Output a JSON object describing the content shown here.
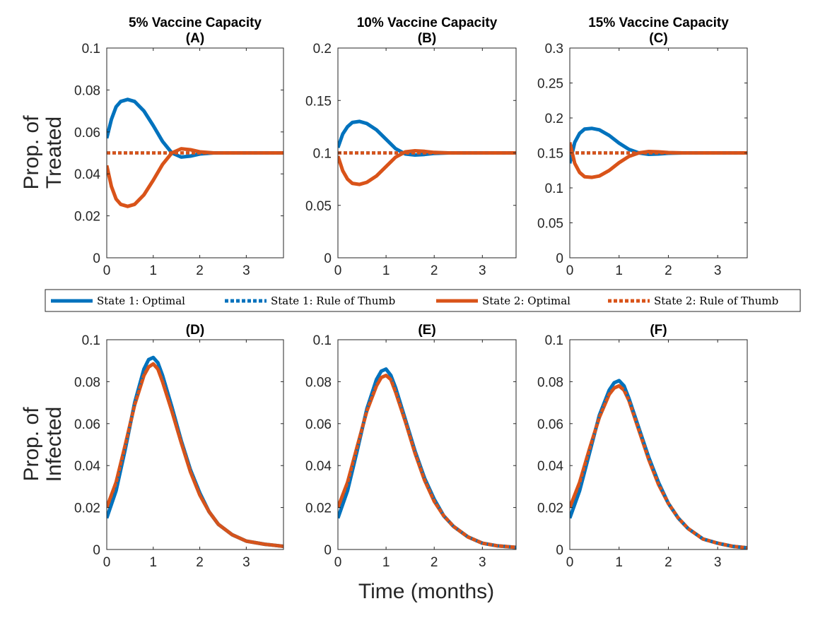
{
  "figure": {
    "ylabel_top": [
      "Prop. of",
      "Treated"
    ],
    "ylabel_bottom": [
      "Prop. of",
      "Infected"
    ],
    "xlabel": "Time (months)"
  },
  "legend": {
    "placement": "center, between rows",
    "entries": [
      {
        "label": "State 1:  Optimal",
        "color": "#0072BD",
        "style": "solid"
      },
      {
        "label": "State 1:  Rule of Thumb",
        "color": "#0072BD",
        "style": "dotted"
      },
      {
        "label": "State 2:  Optimal",
        "color": "#D95319",
        "style": "solid"
      },
      {
        "label": "State 2:  Rule of Thumb",
        "color": "#D95319",
        "style": "dotted"
      }
    ]
  },
  "chart_data": [
    {
      "id": "A",
      "type": "line",
      "title": [
        "5% Vaccine Capacity",
        "(A)"
      ],
      "xlim": [
        0,
        3.8
      ],
      "xticks": [
        0,
        1,
        2,
        3
      ],
      "ylim": [
        0,
        0.1
      ],
      "yticks": [
        "0",
        "0.02",
        "0.04",
        "0.06",
        "0.08",
        "0.1"
      ],
      "series": [
        {
          "name": "State 1:  Optimal",
          "x": [
            0,
            0.1,
            0.2,
            0.3,
            0.45,
            0.6,
            0.8,
            1.0,
            1.2,
            1.4,
            1.6,
            1.8,
            2.0,
            2.3,
            2.6,
            3.0,
            3.4,
            3.8
          ],
          "y": [
            0.057,
            0.066,
            0.072,
            0.0745,
            0.0755,
            0.0745,
            0.07,
            0.063,
            0.0555,
            0.05,
            0.048,
            0.0485,
            0.0495,
            0.05,
            0.05,
            0.05,
            0.05,
            0.05
          ]
        },
        {
          "name": "State 1:  Rule of Thumb",
          "x": [
            0,
            3.8
          ],
          "y": [
            0.05,
            0.05
          ]
        },
        {
          "name": "State 2:  Optimal",
          "x": [
            0,
            0.1,
            0.2,
            0.3,
            0.45,
            0.6,
            0.8,
            1.0,
            1.2,
            1.4,
            1.6,
            1.8,
            2.0,
            2.3,
            2.6,
            3.0,
            3.4,
            3.8
          ],
          "y": [
            0.044,
            0.034,
            0.028,
            0.0255,
            0.0245,
            0.0255,
            0.03,
            0.037,
            0.0445,
            0.05,
            0.052,
            0.0515,
            0.0505,
            0.05,
            0.05,
            0.05,
            0.05,
            0.05
          ]
        },
        {
          "name": "State 2:  Rule of Thumb",
          "x": [
            0,
            3.8
          ],
          "y": [
            0.05,
            0.05
          ]
        }
      ]
    },
    {
      "id": "B",
      "type": "line",
      "title": [
        "10% Vaccine Capacity",
        "(B)"
      ],
      "xlim": [
        0,
        3.7
      ],
      "xticks": [
        0,
        1,
        2,
        3
      ],
      "ylim": [
        0,
        0.2
      ],
      "yticks": [
        "0",
        "0.05",
        "0.1",
        "0.15",
        "0.2"
      ],
      "series": [
        {
          "name": "State 1:  Optimal",
          "x": [
            0,
            0.1,
            0.2,
            0.3,
            0.45,
            0.6,
            0.8,
            1.0,
            1.2,
            1.4,
            1.6,
            1.8,
            2.0,
            2.3,
            2.6,
            3.0,
            3.4,
            3.7
          ],
          "y": [
            0.105,
            0.118,
            0.125,
            0.129,
            0.13,
            0.128,
            0.122,
            0.113,
            0.104,
            0.099,
            0.098,
            0.0985,
            0.0995,
            0.1,
            0.1,
            0.1,
            0.1,
            0.1
          ]
        },
        {
          "name": "State 1:  Rule of Thumb",
          "x": [
            0,
            3.7
          ],
          "y": [
            0.1,
            0.1
          ]
        },
        {
          "name": "State 2:  Optimal",
          "x": [
            0,
            0.1,
            0.2,
            0.3,
            0.45,
            0.6,
            0.8,
            1.0,
            1.2,
            1.4,
            1.6,
            1.8,
            2.0,
            2.3,
            2.6,
            3.0,
            3.4,
            3.7
          ],
          "y": [
            0.097,
            0.083,
            0.075,
            0.071,
            0.07,
            0.072,
            0.078,
            0.087,
            0.096,
            0.101,
            0.102,
            0.1015,
            0.1005,
            0.1,
            0.1,
            0.1,
            0.1,
            0.1
          ]
        },
        {
          "name": "State 2:  Rule of Thumb",
          "x": [
            0,
            3.7
          ],
          "y": [
            0.1,
            0.1
          ]
        }
      ]
    },
    {
      "id": "C",
      "type": "line",
      "title": [
        "15% Vaccine Capacity",
        "(C)"
      ],
      "xlim": [
        0,
        3.6
      ],
      "xticks": [
        0,
        1,
        2,
        3
      ],
      "ylim": [
        0,
        0.3
      ],
      "yticks": [
        "0",
        "0.05",
        "0.1",
        "0.15",
        "0.2",
        "0.25",
        "0.3"
      ],
      "series": [
        {
          "name": "State 1:  Optimal",
          "x": [
            0,
            0.1,
            0.2,
            0.3,
            0.45,
            0.6,
            0.8,
            1.0,
            1.2,
            1.4,
            1.6,
            1.8,
            2.0,
            2.3,
            2.6,
            3.0,
            3.3,
            3.6
          ],
          "y": [
            0.135,
            0.165,
            0.178,
            0.184,
            0.185,
            0.183,
            0.175,
            0.164,
            0.155,
            0.15,
            0.148,
            0.1485,
            0.1495,
            0.15,
            0.15,
            0.15,
            0.15,
            0.15
          ]
        },
        {
          "name": "State 1:  Rule of Thumb",
          "x": [
            0,
            3.6
          ],
          "y": [
            0.15,
            0.15
          ]
        },
        {
          "name": "State 2:  Optimal",
          "x": [
            0,
            0.1,
            0.2,
            0.3,
            0.45,
            0.6,
            0.8,
            1.0,
            1.2,
            1.4,
            1.6,
            1.8,
            2.0,
            2.3,
            2.6,
            3.0,
            3.3,
            3.6
          ],
          "y": [
            0.165,
            0.135,
            0.122,
            0.116,
            0.115,
            0.117,
            0.125,
            0.136,
            0.145,
            0.15,
            0.152,
            0.1515,
            0.1505,
            0.15,
            0.15,
            0.15,
            0.15,
            0.15
          ]
        },
        {
          "name": "State 2:  Rule of Thumb",
          "x": [
            0,
            3.6
          ],
          "y": [
            0.15,
            0.15
          ]
        }
      ]
    },
    {
      "id": "D",
      "type": "line",
      "title": [
        "(D)"
      ],
      "xlim": [
        0,
        3.8
      ],
      "xticks": [
        0,
        1,
        2,
        3
      ],
      "ylim": [
        0,
        0.1
      ],
      "yticks": [
        "0",
        "0.02",
        "0.04",
        "0.06",
        "0.08",
        "0.1"
      ],
      "series": [
        {
          "name": "State 1:  Optimal",
          "x": [
            0,
            0.2,
            0.4,
            0.6,
            0.8,
            0.9,
            1.0,
            1.1,
            1.2,
            1.4,
            1.6,
            1.8,
            2.0,
            2.2,
            2.4,
            2.7,
            3.0,
            3.4,
            3.8
          ],
          "y": [
            0.015,
            0.028,
            0.048,
            0.07,
            0.086,
            0.0905,
            0.0915,
            0.089,
            0.083,
            0.068,
            0.052,
            0.038,
            0.027,
            0.018,
            0.012,
            0.007,
            0.004,
            0.0025,
            0.0015
          ]
        },
        {
          "name": "State 1:  Rule of Thumb",
          "x": [
            0,
            0.2,
            0.4,
            0.6,
            0.8,
            0.9,
            1.0,
            1.1,
            1.2,
            1.4,
            1.6,
            1.8,
            2.0,
            2.2,
            2.4,
            2.7,
            3.0,
            3.4,
            3.8
          ],
          "y": [
            0.015,
            0.028,
            0.048,
            0.07,
            0.086,
            0.0905,
            0.0915,
            0.089,
            0.083,
            0.068,
            0.052,
            0.038,
            0.027,
            0.018,
            0.012,
            0.007,
            0.004,
            0.0025,
            0.0015
          ]
        },
        {
          "name": "State 2:  Optimal",
          "x": [
            0,
            0.2,
            0.4,
            0.6,
            0.8,
            0.9,
            1.0,
            1.1,
            1.2,
            1.4,
            1.6,
            1.8,
            2.0,
            2.2,
            2.4,
            2.7,
            3.0,
            3.4,
            3.8
          ],
          "y": [
            0.02,
            0.032,
            0.05,
            0.069,
            0.083,
            0.087,
            0.0885,
            0.086,
            0.08,
            0.066,
            0.051,
            0.037,
            0.026,
            0.018,
            0.012,
            0.007,
            0.004,
            0.0025,
            0.0015
          ]
        },
        {
          "name": "State 2:  Rule of Thumb",
          "x": [
            0,
            0.2,
            0.4,
            0.6,
            0.8,
            0.9,
            1.0,
            1.1,
            1.2,
            1.4,
            1.6,
            1.8,
            2.0,
            2.2,
            2.4,
            2.7,
            3.0,
            3.4,
            3.8
          ],
          "y": [
            0.02,
            0.032,
            0.05,
            0.069,
            0.083,
            0.087,
            0.0885,
            0.086,
            0.08,
            0.066,
            0.051,
            0.037,
            0.026,
            0.018,
            0.012,
            0.007,
            0.004,
            0.0025,
            0.0015
          ]
        }
      ]
    },
    {
      "id": "E",
      "type": "line",
      "title": [
        "(E)"
      ],
      "xlim": [
        0,
        3.7
      ],
      "xticks": [
        0,
        1,
        2,
        3
      ],
      "ylim": [
        0,
        0.1
      ],
      "yticks": [
        "0",
        "0.02",
        "0.04",
        "0.06",
        "0.08",
        "0.1"
      ],
      "series": [
        {
          "name": "State 1:  Optimal",
          "x": [
            0,
            0.2,
            0.4,
            0.6,
            0.8,
            0.9,
            1.0,
            1.1,
            1.2,
            1.4,
            1.6,
            1.8,
            2.0,
            2.2,
            2.4,
            2.7,
            3.0,
            3.3,
            3.7
          ],
          "y": [
            0.015,
            0.028,
            0.047,
            0.067,
            0.081,
            0.085,
            0.086,
            0.083,
            0.077,
            0.062,
            0.047,
            0.034,
            0.024,
            0.016,
            0.011,
            0.006,
            0.003,
            0.0018,
            0.001
          ]
        },
        {
          "name": "State 1:  Rule of Thumb",
          "x": [
            0,
            0.2,
            0.4,
            0.6,
            0.8,
            0.9,
            1.0,
            1.1,
            1.2,
            1.4,
            1.6,
            1.8,
            2.0,
            2.2,
            2.4,
            2.7,
            3.0,
            3.3,
            3.7
          ],
          "y": [
            0.015,
            0.028,
            0.047,
            0.067,
            0.081,
            0.085,
            0.086,
            0.083,
            0.077,
            0.062,
            0.047,
            0.034,
            0.024,
            0.016,
            0.011,
            0.006,
            0.003,
            0.0018,
            0.001
          ]
        },
        {
          "name": "State 2:  Optimal",
          "x": [
            0,
            0.2,
            0.4,
            0.6,
            0.8,
            0.9,
            1.0,
            1.1,
            1.2,
            1.4,
            1.6,
            1.8,
            2.0,
            2.2,
            2.4,
            2.7,
            3.0,
            3.3,
            3.7
          ],
          "y": [
            0.02,
            0.032,
            0.049,
            0.066,
            0.078,
            0.082,
            0.083,
            0.081,
            0.075,
            0.061,
            0.046,
            0.033,
            0.023,
            0.016,
            0.011,
            0.006,
            0.003,
            0.0018,
            0.001
          ]
        },
        {
          "name": "State 2:  Rule of Thumb",
          "x": [
            0,
            0.2,
            0.4,
            0.6,
            0.8,
            0.9,
            1.0,
            1.1,
            1.2,
            1.4,
            1.6,
            1.8,
            2.0,
            2.2,
            2.4,
            2.7,
            3.0,
            3.3,
            3.7
          ],
          "y": [
            0.02,
            0.032,
            0.049,
            0.066,
            0.078,
            0.082,
            0.083,
            0.081,
            0.075,
            0.061,
            0.046,
            0.033,
            0.023,
            0.016,
            0.011,
            0.006,
            0.003,
            0.0018,
            0.001
          ]
        }
      ]
    },
    {
      "id": "F",
      "type": "line",
      "title": [
        "(F)"
      ],
      "xlim": [
        0,
        3.6
      ],
      "xticks": [
        0,
        1,
        2,
        3
      ],
      "ylim": [
        0,
        0.1
      ],
      "yticks": [
        "0",
        "0.02",
        "0.04",
        "0.06",
        "0.08",
        "0.1"
      ],
      "series": [
        {
          "name": "State 1:  Optimal",
          "x": [
            0,
            0.2,
            0.4,
            0.6,
            0.8,
            0.9,
            1.0,
            1.1,
            1.2,
            1.4,
            1.6,
            1.8,
            2.0,
            2.2,
            2.4,
            2.7,
            3.0,
            3.3,
            3.6
          ],
          "y": [
            0.015,
            0.028,
            0.046,
            0.064,
            0.076,
            0.0795,
            0.0805,
            0.078,
            0.072,
            0.058,
            0.044,
            0.032,
            0.022,
            0.015,
            0.01,
            0.005,
            0.003,
            0.0015,
            0.0008
          ]
        },
        {
          "name": "State 1:  Rule of Thumb",
          "x": [
            0,
            0.2,
            0.4,
            0.6,
            0.8,
            0.9,
            1.0,
            1.1,
            1.2,
            1.4,
            1.6,
            1.8,
            2.0,
            2.2,
            2.4,
            2.7,
            3.0,
            3.3,
            3.6
          ],
          "y": [
            0.015,
            0.028,
            0.046,
            0.064,
            0.076,
            0.0795,
            0.0805,
            0.078,
            0.072,
            0.058,
            0.044,
            0.032,
            0.022,
            0.015,
            0.01,
            0.005,
            0.003,
            0.0015,
            0.0008
          ]
        },
        {
          "name": "State 2:  Optimal",
          "x": [
            0,
            0.2,
            0.4,
            0.6,
            0.8,
            0.9,
            1.0,
            1.1,
            1.2,
            1.4,
            1.6,
            1.8,
            2.0,
            2.2,
            2.4,
            2.7,
            3.0,
            3.3,
            3.6
          ],
          "y": [
            0.02,
            0.032,
            0.048,
            0.063,
            0.074,
            0.077,
            0.078,
            0.076,
            0.071,
            0.057,
            0.043,
            0.031,
            0.022,
            0.015,
            0.01,
            0.005,
            0.003,
            0.0015,
            0.0008
          ]
        },
        {
          "name": "State 2:  Rule of Thumb",
          "x": [
            0,
            0.2,
            0.4,
            0.6,
            0.8,
            0.9,
            1.0,
            1.1,
            1.2,
            1.4,
            1.6,
            1.8,
            2.0,
            2.2,
            2.4,
            2.7,
            3.0,
            3.3,
            3.6
          ],
          "y": [
            0.02,
            0.032,
            0.048,
            0.063,
            0.074,
            0.077,
            0.078,
            0.076,
            0.071,
            0.057,
            0.043,
            0.031,
            0.022,
            0.015,
            0.01,
            0.005,
            0.003,
            0.0015,
            0.0008
          ]
        }
      ]
    }
  ]
}
